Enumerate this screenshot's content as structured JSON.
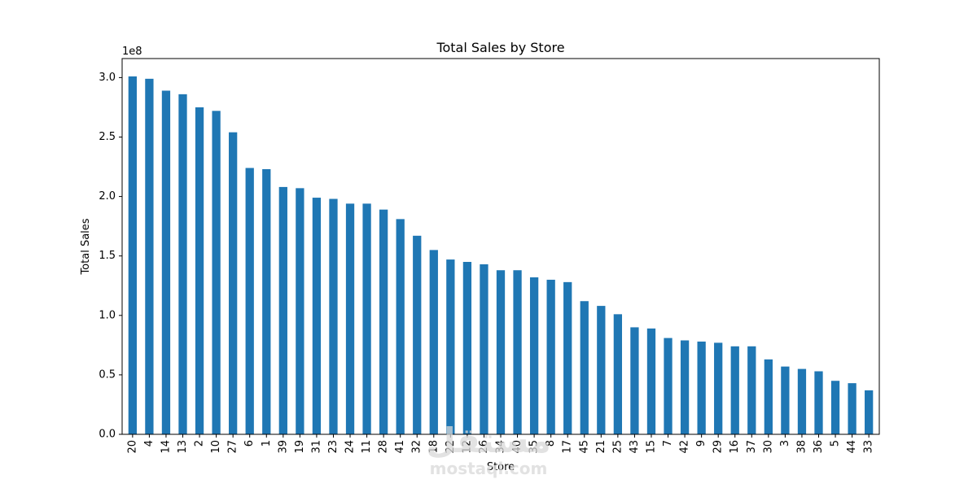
{
  "chart_data": {
    "type": "bar",
    "title": "Total Sales by Store",
    "xlabel": "Store",
    "ylabel": "Total Sales",
    "offset_label": "1e8",
    "ylim": [
      0,
      3.16
    ],
    "yticks": [
      0.0,
      0.5,
      1.0,
      1.5,
      2.0,
      2.5,
      3.0
    ],
    "ytick_labels": [
      "0.0",
      "0.5",
      "1.0",
      "1.5",
      "2.0",
      "2.5",
      "3.0"
    ],
    "color": "#1f77b4",
    "grid": false,
    "categories": [
      "20",
      "4",
      "14",
      "13",
      "2",
      "10",
      "27",
      "6",
      "1",
      "39",
      "19",
      "31",
      "23",
      "24",
      "11",
      "28",
      "41",
      "32",
      "18",
      "22",
      "12",
      "26",
      "34",
      "40",
      "35",
      "8",
      "17",
      "45",
      "21",
      "25",
      "43",
      "15",
      "7",
      "42",
      "9",
      "29",
      "16",
      "37",
      "30",
      "3",
      "38",
      "36",
      "5",
      "44",
      "33"
    ],
    "values": [
      3.01,
      2.99,
      2.89,
      2.86,
      2.75,
      2.72,
      2.54,
      2.24,
      2.23,
      2.08,
      2.07,
      1.99,
      1.98,
      1.94,
      1.94,
      1.89,
      1.81,
      1.67,
      1.55,
      1.47,
      1.45,
      1.43,
      1.38,
      1.38,
      1.32,
      1.3,
      1.28,
      1.12,
      1.08,
      1.01,
      0.9,
      0.89,
      0.81,
      0.79,
      0.78,
      0.77,
      0.74,
      0.74,
      0.63,
      0.57,
      0.55,
      0.53,
      0.45,
      0.43,
      0.37
    ]
  },
  "watermark": {
    "logo_text": "مستقل",
    "site_text": "mostaql.com"
  }
}
